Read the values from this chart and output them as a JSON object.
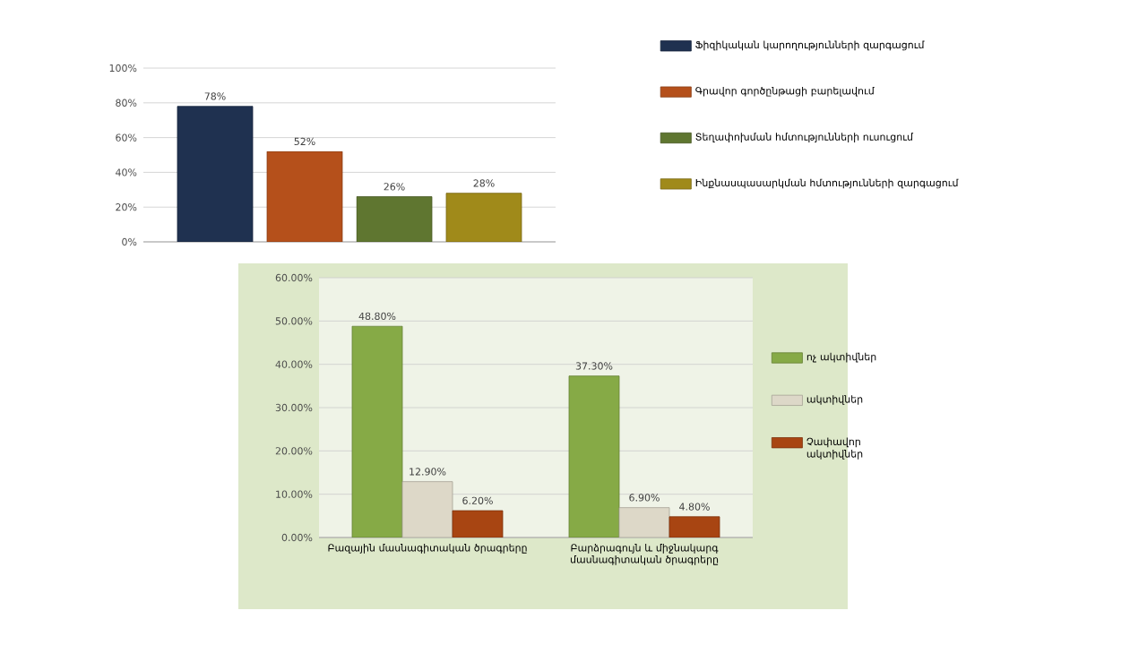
{
  "chart_data": [
    {
      "type": "bar",
      "categories": [
        null
      ],
      "ylim": [
        0,
        100
      ],
      "yticks": [
        {
          "value": 0,
          "label": "0%"
        },
        {
          "value": 20,
          "label": "20%"
        },
        {
          "value": 40,
          "label": "40%"
        },
        {
          "value": 60,
          "label": "60%"
        },
        {
          "value": 80,
          "label": "80%"
        },
        {
          "value": 100,
          "label": "100%"
        }
      ],
      "grid": "y",
      "legend": "right",
      "series": [
        {
          "name": "Ֆիզիկական կարողությունների զարգացում",
          "color": "#1f3150",
          "values": [
            78
          ],
          "value_labels": [
            "78%"
          ]
        },
        {
          "name": "Գրավոր գործընթացի բարելավում",
          "color": "#b5501b",
          "values": [
            52
          ],
          "value_labels": [
            "52%"
          ]
        },
        {
          "name": "Տեղափոխման հմտությունների ուսուցում",
          "color": "#5f7630",
          "values": [
            26
          ],
          "value_labels": [
            "26%"
          ]
        },
        {
          "name": "Ինքնասպասարկման հմտությունների զարգացում",
          "color": "#a08a1a",
          "values": [
            28
          ],
          "value_labels": [
            "28%"
          ]
        }
      ]
    },
    {
      "type": "bar",
      "categories": [
        "Բազային մասնագիտական ծրագրերը",
        "Բարձրագույն և միջնակարգ մասնագիտական ծրագրերը"
      ],
      "ylim": [
        0,
        60
      ],
      "yticks": [
        {
          "value": 0,
          "label": "0.00%"
        },
        {
          "value": 10,
          "label": "10.00%"
        },
        {
          "value": 20,
          "label": "20.00%"
        },
        {
          "value": 30,
          "label": "30.00%"
        },
        {
          "value": 40,
          "label": "40.00%"
        },
        {
          "value": 50,
          "label": "50.00%"
        },
        {
          "value": 60,
          "label": "60.00%"
        }
      ],
      "grid": "y",
      "legend": "right",
      "series": [
        {
          "name": "ոչ ակտիվներ",
          "color": "#86aa46",
          "values": [
            48.8,
            37.3
          ],
          "value_labels": [
            "48.80%",
            "37.30%"
          ]
        },
        {
          "name": "ակտիվներ",
          "color": "#ddd8c8",
          "values": [
            12.9,
            6.9
          ],
          "value_labels": [
            "12.90%",
            "6.90%"
          ]
        },
        {
          "name": "Չափավոր ակտիվներ",
          "color": "#a84512",
          "values": [
            6.2,
            4.8
          ],
          "value_labels": [
            "6.20%",
            "4.80%"
          ]
        }
      ]
    }
  ]
}
